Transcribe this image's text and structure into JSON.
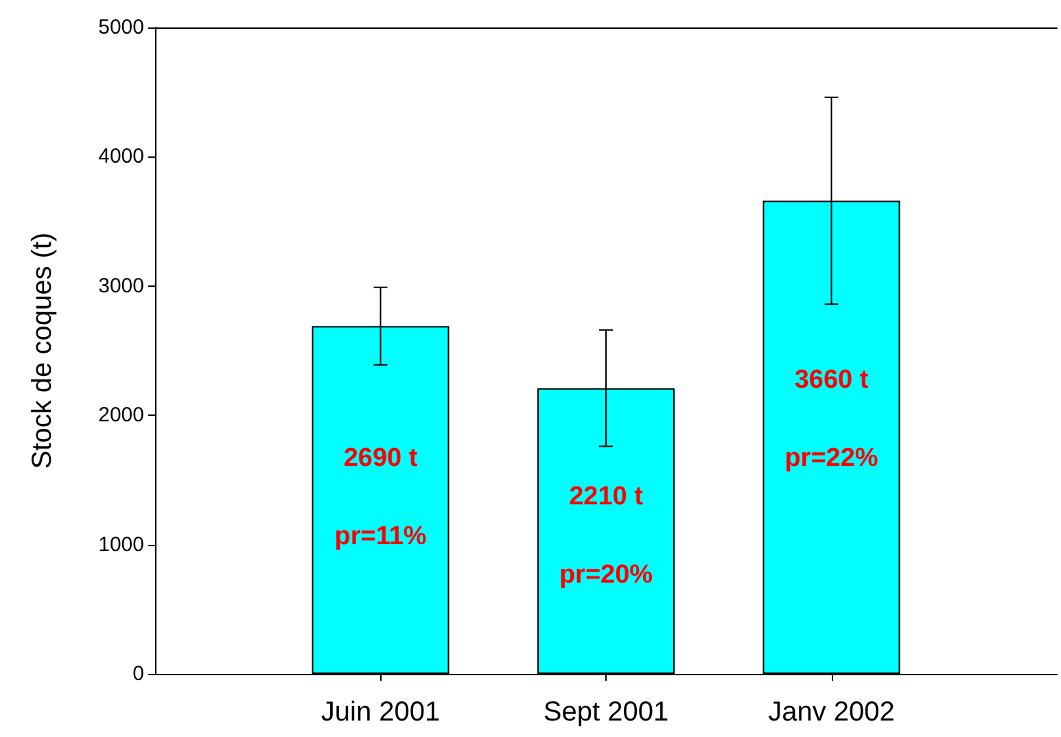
{
  "chart_data": {
    "type": "bar",
    "ylabel": "Stock de coques (t)",
    "categories": [
      "Juin 2001",
      "Sept 2001",
      "Janv 2002"
    ],
    "values": [
      2690,
      2210,
      3660
    ],
    "errors": [
      300,
      450,
      800
    ],
    "color": "#00ffff",
    "ylim": [
      0,
      5000
    ],
    "yticks": [
      0,
      1000,
      2000,
      3000,
      4000,
      5000
    ],
    "grid": false,
    "annotations": [
      "2690 t",
      "pr=11%",
      "2210 t",
      "pr=20%",
      "3660 t",
      "pr=22%"
    ]
  }
}
